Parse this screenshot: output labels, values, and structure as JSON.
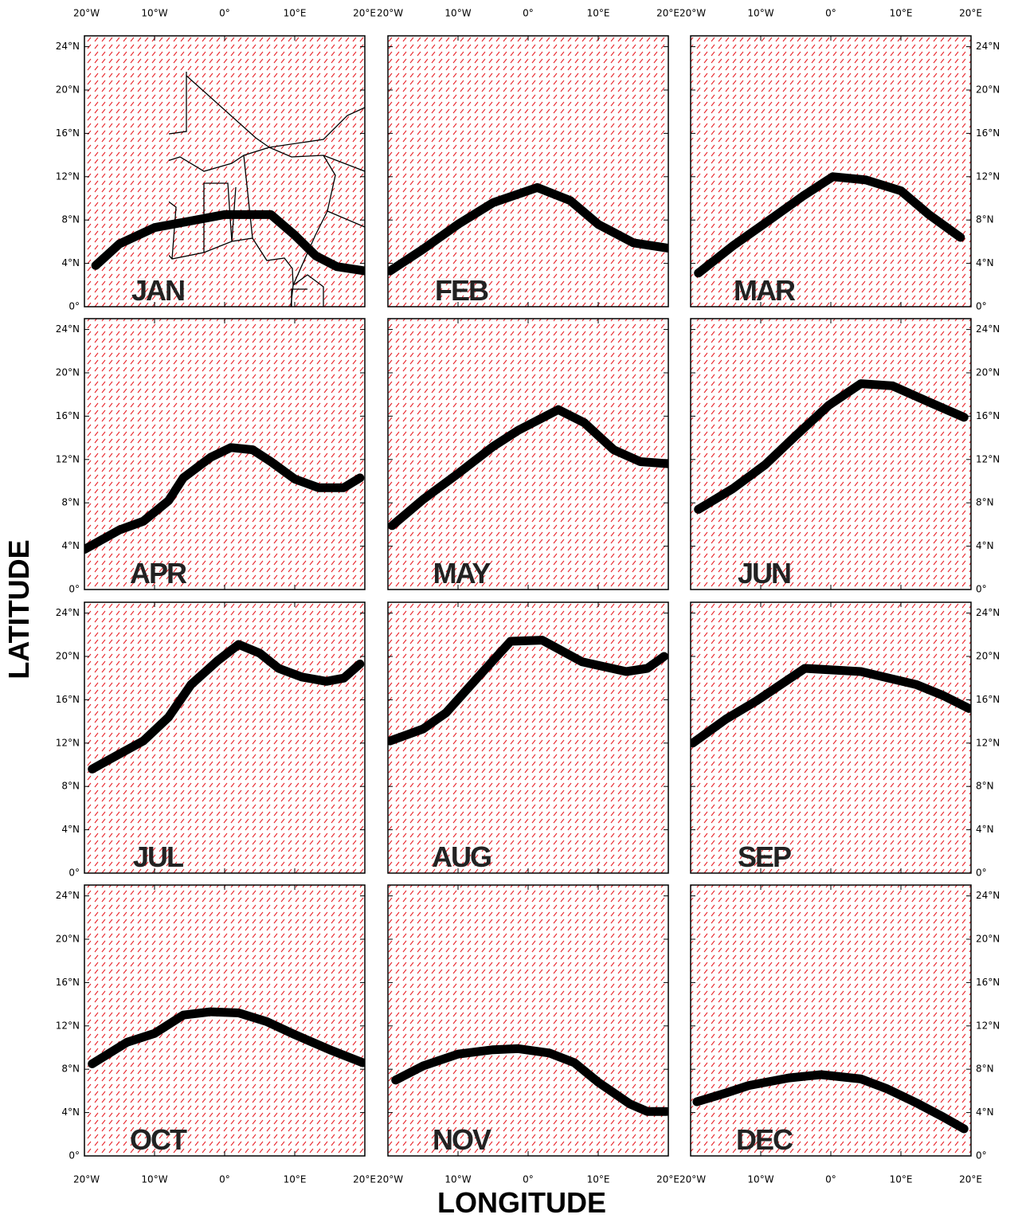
{
  "axis_labels": {
    "x": "LONGITUDE",
    "y": "LATITUDE"
  },
  "lon_range": [
    -20,
    20
  ],
  "lat_range": [
    0,
    25
  ],
  "lon_ticks": [
    {
      "value": -20,
      "label": "20°W"
    },
    {
      "value": -10,
      "label": "10°W"
    },
    {
      "value": 0,
      "label": "0°"
    },
    {
      "value": 10,
      "label": "10°E"
    },
    {
      "value": 20,
      "label": "20°E"
    }
  ],
  "lat_ticks": [
    {
      "value": 0,
      "label": "0°"
    },
    {
      "value": 4,
      "label": "4°N"
    },
    {
      "value": 8,
      "label": "8°N"
    },
    {
      "value": 12,
      "label": "12°N"
    },
    {
      "value": 16,
      "label": "16°N"
    },
    {
      "value": 20,
      "label": "20°N"
    },
    {
      "value": 24,
      "label": "24°N"
    }
  ],
  "panels": [
    {
      "label": "JAN",
      "line": {
        "lon": [
          -18.4,
          -15,
          -10,
          -5,
          0,
          6.6,
          10,
          13,
          16,
          20
        ],
        "lat": [
          3.8,
          5.8,
          7.3,
          7.9,
          8.5,
          8.5,
          6.6,
          4.7,
          3.7,
          3.3
        ]
      }
    },
    {
      "label": "FEB",
      "line": {
        "lon": [
          -19.7,
          -15,
          -10,
          -5,
          1.3,
          6,
          10,
          15,
          20
        ],
        "lat": [
          3.3,
          5.3,
          7.6,
          9.6,
          11,
          9.8,
          7.6,
          5.9,
          5.4
        ]
      }
    },
    {
      "label": "MAR",
      "line": {
        "lon": [
          -18.9,
          -14,
          -9.4,
          -4,
          0.3,
          5,
          10,
          14,
          18.5
        ],
        "lat": [
          3.1,
          5.6,
          7.7,
          10.2,
          12,
          11.7,
          10.7,
          8.5,
          6.4
        ]
      }
    },
    {
      "label": "APR",
      "line": {
        "lon": [
          -20,
          -15,
          -11.6,
          -8,
          -5.9,
          -2,
          0.9,
          4,
          6.6,
          10,
          13.4,
          17,
          19.3
        ],
        "lat": [
          3.7,
          5.5,
          6.3,
          8.2,
          10.3,
          12.2,
          13.1,
          12.9,
          11.8,
          10.2,
          9.4,
          9.4,
          10.3
        ]
      }
    },
    {
      "label": "MAY",
      "line": {
        "lon": [
          -19.4,
          -15,
          -10,
          -5,
          -1.4,
          4.3,
          8,
          12.2,
          16,
          20
        ],
        "lat": [
          5.9,
          8.3,
          10.7,
          13.2,
          14.7,
          16.6,
          15.4,
          12.9,
          11.8,
          11.6
        ]
      }
    },
    {
      "label": "JUN",
      "line": {
        "lon": [
          -18.9,
          -14,
          -9.4,
          -5,
          -0.3,
          4.3,
          8.8,
          14,
          19
        ],
        "lat": [
          7.4,
          9.3,
          11.5,
          14.2,
          17,
          19,
          18.8,
          17.3,
          15.9
        ]
      }
    },
    {
      "label": "JUL",
      "line": {
        "lon": [
          -18.9,
          -15,
          -11.6,
          -8,
          -4.8,
          -1,
          2,
          5,
          7.7,
          11,
          14.5,
          17,
          19.3
        ],
        "lat": [
          9.6,
          11,
          12.2,
          14.4,
          17.4,
          19.6,
          21.1,
          20.3,
          18.9,
          18.1,
          17.7,
          18,
          19.3
        ]
      }
    },
    {
      "label": "AUG",
      "line": {
        "lon": [
          -19.7,
          -15,
          -11.7,
          -7,
          -2.5,
          2,
          7.7,
          14,
          17,
          19.4
        ],
        "lat": [
          12.2,
          13.3,
          14.8,
          18.2,
          21.4,
          21.5,
          19.5,
          18.6,
          18.9,
          20
        ]
      }
    },
    {
      "label": "SEP",
      "line": {
        "lon": [
          -19.7,
          -15,
          -10.6,
          -3.7,
          4.3,
          12.2,
          16,
          19.7
        ],
        "lat": [
          12,
          14.2,
          15.9,
          18.9,
          18.6,
          17.4,
          16.4,
          15.2
        ]
      }
    },
    {
      "label": "OCT",
      "line": {
        "lon": [
          -18.9,
          -13.9,
          -10,
          -5.9,
          -2,
          2,
          6,
          10,
          15,
          19.7
        ],
        "lat": [
          8.5,
          10.5,
          11.3,
          13,
          13.3,
          13.2,
          12.4,
          11.2,
          9.8,
          8.6
        ]
      }
    },
    {
      "label": "NOV",
      "line": {
        "lon": [
          -18.9,
          -15,
          -10,
          -5,
          -1.4,
          3,
          6.6,
          10,
          14.5,
          17,
          19.7
        ],
        "lat": [
          7,
          8.3,
          9.4,
          9.8,
          9.9,
          9.5,
          8.6,
          6.8,
          4.8,
          4.1,
          4.1
        ]
      }
    },
    {
      "label": "DEC",
      "line": {
        "lon": [
          -19.1,
          -15,
          -11.7,
          -6,
          -1.4,
          4.3,
          8,
          12.2,
          16,
          19
        ],
        "lat": [
          5,
          5.8,
          6.5,
          7.2,
          7.5,
          7.1,
          6.2,
          4.9,
          3.6,
          2.5
        ]
      }
    }
  ]
}
